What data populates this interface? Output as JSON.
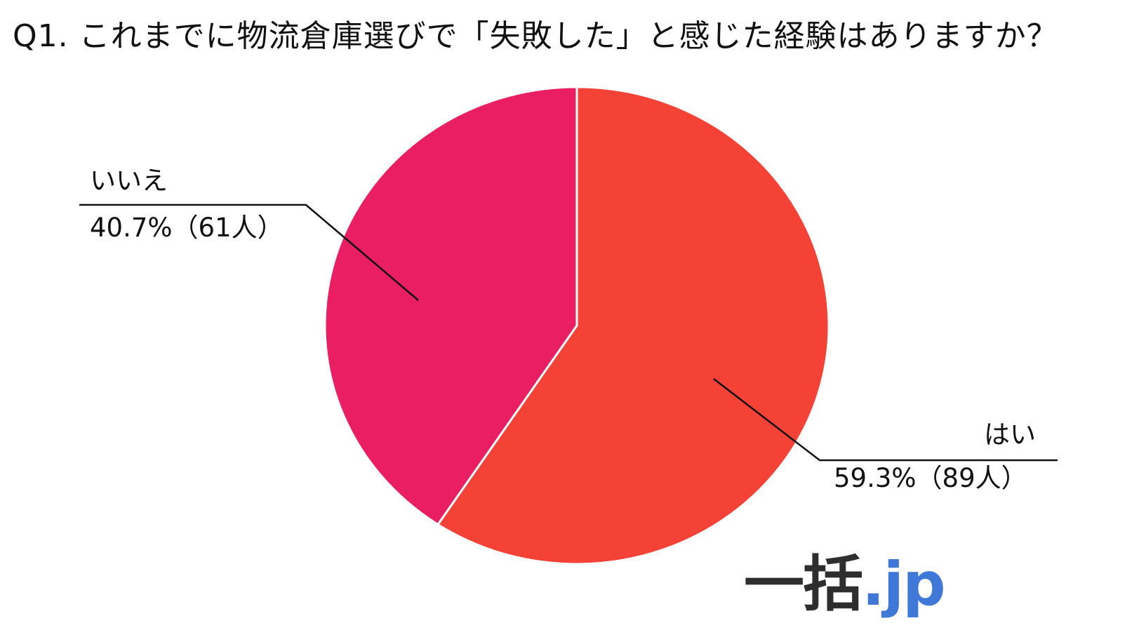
{
  "title": "Q1. これまでに物流倉庫選びで「失敗した」と感じた経験はありますか？",
  "chart_data": {
    "type": "pie",
    "title": "Q1. これまでに物流倉庫選びで「失敗した」と感じた経験はありますか？",
    "slices": [
      {
        "label": "はい",
        "percent": 59.3,
        "count": 89,
        "value_label": "59.3%（89人）",
        "color": "#f44336"
      },
      {
        "label": "いいえ",
        "percent": 40.7,
        "count": 61,
        "value_label": "40.7%（61人）",
        "color": "#e91e63"
      }
    ],
    "start": "12 o'clock",
    "direction": "clockwise",
    "legend": "none"
  },
  "logo": {
    "main": "一括",
    "tld": ".jp"
  }
}
